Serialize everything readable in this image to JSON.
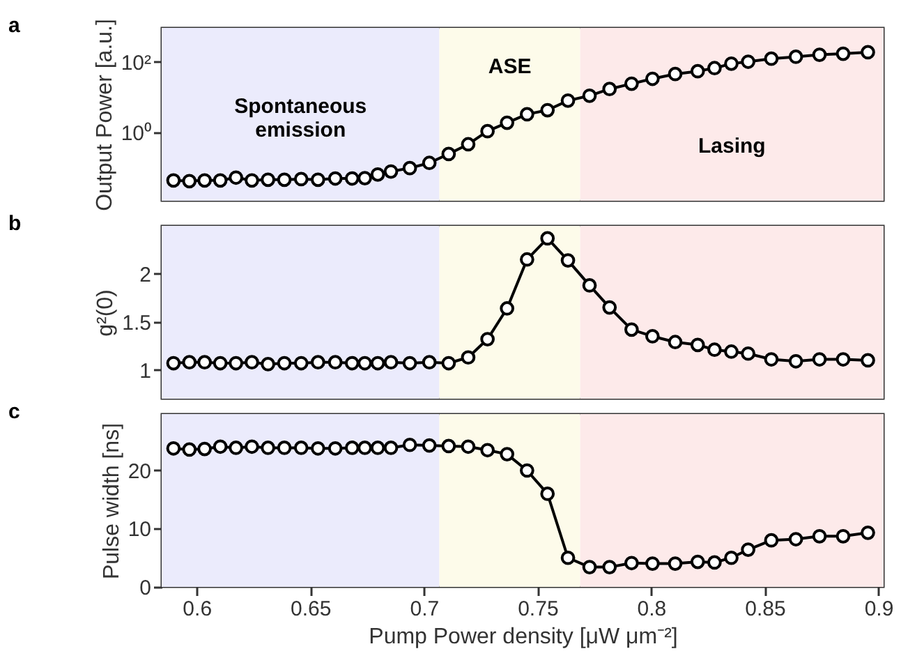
{
  "chart_data": [
    {
      "type": "line",
      "ylabel": "Output Power [a.u.]",
      "log": "y",
      "marker": "circle",
      "line_style": "solid",
      "tick_labels": "y",
      "x": [
        0.5898,
        0.5968,
        0.6035,
        0.6104,
        0.6173,
        0.6243,
        0.6314,
        0.6386,
        0.646,
        0.6534,
        0.661,
        0.6684,
        0.674,
        0.6797,
        0.6855,
        0.6938,
        0.7024,
        0.7109,
        0.7195,
        0.728,
        0.7366,
        0.7454,
        0.7544,
        0.7634,
        0.7729,
        0.7817,
        0.7914,
        0.8006,
        0.8106,
        0.8205,
        0.8279,
        0.8353,
        0.8427,
        0.8529,
        0.8637,
        0.8741,
        0.8845,
        0.8954
      ],
      "series": [
        {
          "color": "#000000",
          "values": [
            0.045,
            0.043,
            0.045,
            0.045,
            0.054,
            0.045,
            0.047,
            0.047,
            0.049,
            0.047,
            0.051,
            0.051,
            0.052,
            0.066,
            0.08,
            0.1,
            0.14,
            0.25,
            0.47,
            1.1,
            1.9,
            3.3,
            4.3,
            8,
            11,
            17,
            24,
            33,
            45,
            54,
            66,
            88,
            100,
            122,
            138,
            157,
            168,
            185
          ]
        }
      ],
      "xlim": [
        0.5846,
        0.9023
      ],
      "xticks": [
        0.6,
        0.65,
        0.7,
        0.75,
        0.8,
        0.85,
        0.9
      ],
      "ylim": [
        0.012,
        900
      ],
      "yticks": [
        {
          "value": 1,
          "label": "10⁰"
        },
        {
          "value": 100,
          "label": "10²"
        }
      ],
      "bands": [
        {
          "axis": "x",
          "from": 0.5846,
          "to": 0.7068,
          "color": "#ebebfc",
          "label": "Spontaneous emission"
        },
        {
          "axis": "x",
          "from": 0.7068,
          "to": 0.7688,
          "color": "#fdfbea",
          "label": "ASE"
        },
        {
          "axis": "x",
          "from": 0.7688,
          "to": 0.9023,
          "color": "#fdeaea",
          "label": "Lasing"
        }
      ],
      "annotations": [
        "a"
      ]
    },
    {
      "type": "line",
      "ylabel": "g²(0)",
      "marker": "circle",
      "line_style": "solid",
      "tick_labels": "y",
      "x": [
        0.5898,
        0.5968,
        0.6035,
        0.6104,
        0.6173,
        0.6243,
        0.6314,
        0.6386,
        0.646,
        0.6534,
        0.661,
        0.6684,
        0.674,
        0.6797,
        0.6855,
        0.6938,
        0.7024,
        0.7109,
        0.7195,
        0.728,
        0.7366,
        0.7454,
        0.7544,
        0.7634,
        0.7729,
        0.7817,
        0.7914,
        0.8006,
        0.8106,
        0.8205,
        0.8279,
        0.8353,
        0.8427,
        0.8529,
        0.8637,
        0.8741,
        0.8845,
        0.8954
      ],
      "series": [
        {
          "color": "#000000",
          "values": [
            1.07,
            1.08,
            1.08,
            1.07,
            1.07,
            1.08,
            1.06,
            1.07,
            1.07,
            1.08,
            1.08,
            1.07,
            1.07,
            1.07,
            1.08,
            1.07,
            1.08,
            1.07,
            1.13,
            1.32,
            1.64,
            2.15,
            2.37,
            2.14,
            1.88,
            1.65,
            1.42,
            1.35,
            1.29,
            1.26,
            1.21,
            1.19,
            1.17,
            1.11,
            1.09,
            1.11,
            1.11,
            1.1
          ]
        }
      ],
      "xlim": [
        0.5846,
        0.9023
      ],
      "xticks": [
        0.6,
        0.65,
        0.7,
        0.75,
        0.8,
        0.85,
        0.9
      ],
      "ylim": [
        0.7,
        2.5
      ],
      "yticks": [
        1,
        1.5,
        2
      ],
      "bands": [
        {
          "axis": "x",
          "from": 0.5846,
          "to": 0.7068,
          "color": "#ebebfc"
        },
        {
          "axis": "x",
          "from": 0.7068,
          "to": 0.7688,
          "color": "#fdfbea"
        },
        {
          "axis": "x",
          "from": 0.7688,
          "to": 0.9023,
          "color": "#fdeaea"
        }
      ],
      "annotations": [
        "b"
      ]
    },
    {
      "type": "line",
      "ylabel": "Pulse width [ns]",
      "xlabel": "Pump Power density [μW μm⁻²]",
      "marker": "circle",
      "line_style": "solid",
      "x": [
        0.5898,
        0.5968,
        0.6035,
        0.6104,
        0.6173,
        0.6243,
        0.6314,
        0.6386,
        0.646,
        0.6534,
        0.661,
        0.6684,
        0.674,
        0.6797,
        0.6855,
        0.6938,
        0.7024,
        0.7109,
        0.7195,
        0.728,
        0.7366,
        0.7454,
        0.7544,
        0.7634,
        0.7729,
        0.7817,
        0.7914,
        0.8006,
        0.8106,
        0.8205,
        0.8279,
        0.8353,
        0.8427,
        0.8529,
        0.8637,
        0.8741,
        0.8845,
        0.8954
      ],
      "series": [
        {
          "color": "#000000",
          "values": [
            23.8,
            23.6,
            23.7,
            24.1,
            23.9,
            24.1,
            23.9,
            23.9,
            23.9,
            23.8,
            23.8,
            23.9,
            23.9,
            23.9,
            23.9,
            24.4,
            24.3,
            24.2,
            24.1,
            23.5,
            22.8,
            20,
            16,
            5,
            3.4,
            3.4,
            4.1,
            4,
            4,
            4.3,
            4.2,
            5,
            6.4,
            8,
            8.2,
            8.7,
            8.7,
            9.3
          ]
        }
      ],
      "xlim": [
        0.5846,
        0.9023
      ],
      "xticks": [
        0.6,
        0.65,
        0.7,
        0.75,
        0.8,
        0.85,
        0.9
      ],
      "ylim": [
        0,
        29.7
      ],
      "yticks": [
        0,
        10,
        20
      ],
      "bands": [
        {
          "axis": "x",
          "from": 0.5846,
          "to": 0.7068,
          "color": "#ebebfc"
        },
        {
          "axis": "x",
          "from": 0.7068,
          "to": 0.7688,
          "color": "#fdfbea"
        },
        {
          "axis": "x",
          "from": 0.7688,
          "to": 0.9023,
          "color": "#fdeaea"
        }
      ],
      "annotations": [
        "c"
      ]
    }
  ]
}
